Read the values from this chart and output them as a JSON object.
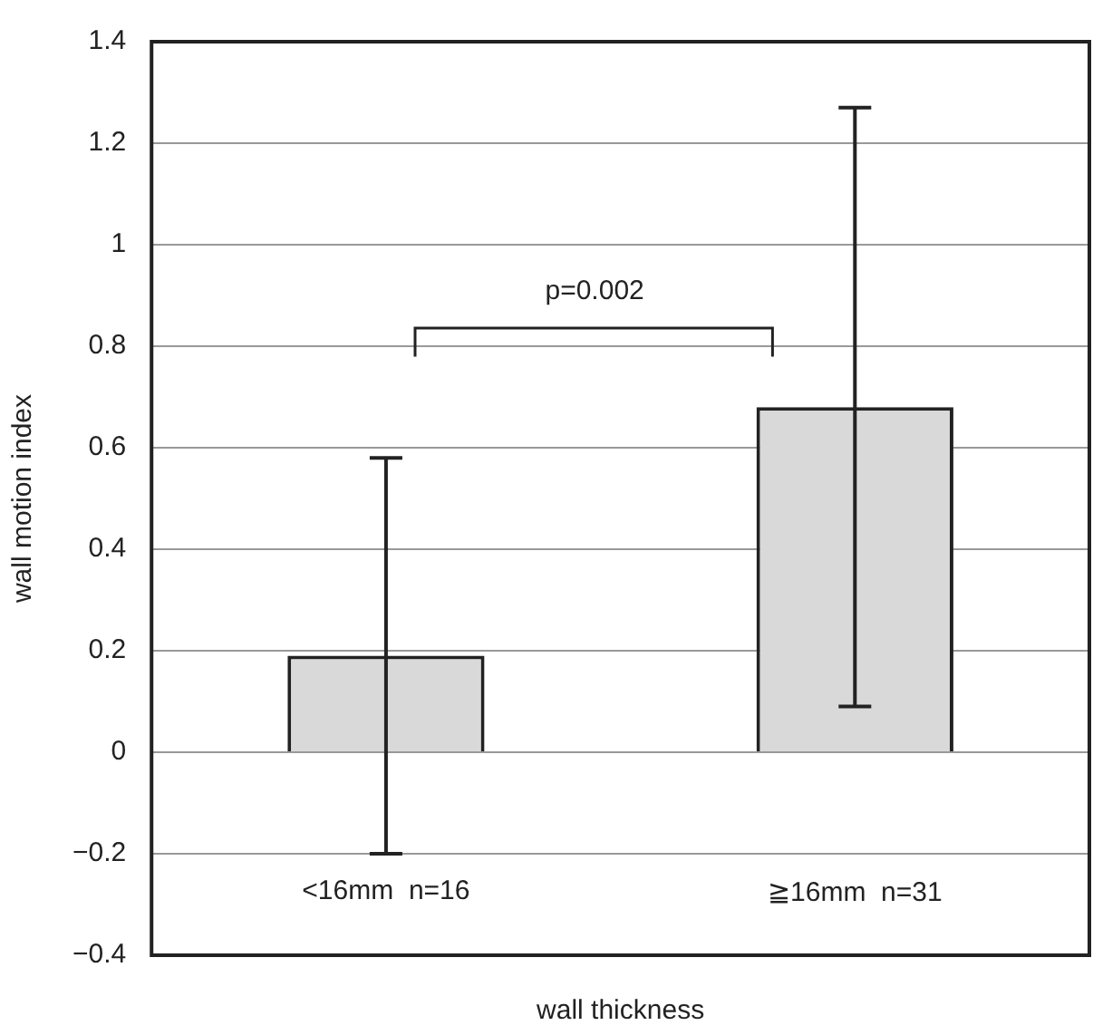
{
  "chart_data": {
    "type": "bar",
    "xlabel": "wall thickness",
    "ylabel": "wall motion index",
    "categories": [
      "<16mm  n=16",
      "≧16mm  n=31"
    ],
    "values": [
      0.19,
      0.68
    ],
    "color": "#d9d9d9",
    "errors": [
      [
        -0.2,
        0.58
      ],
      [
        0.09,
        1.27
      ]
    ],
    "ylim": [
      -0.4,
      1.4
    ],
    "yticks": [
      -0.4,
      -0.2,
      0,
      0.2,
      0.4,
      0.6,
      0.8,
      1,
      1.2,
      1.4
    ],
    "grid": "y",
    "legend": false,
    "annotations": [
      "p=0.002"
    ]
  }
}
